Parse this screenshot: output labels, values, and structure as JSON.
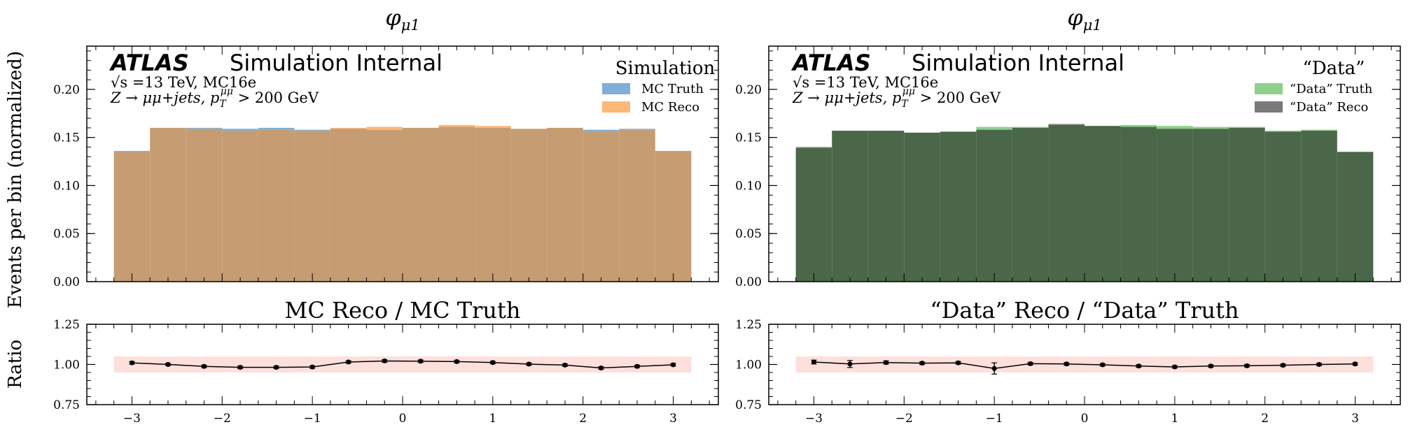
{
  "shared": {
    "ylabel_main": "Events per bin (normalized)",
    "ylabel_ratio": "Ratio",
    "atlas_label": "ATLAS",
    "atlas_suffix": "Simulation Internal",
    "energy_label": "√s =13 TeV, MC16e",
    "selection_label": "Z → μμ+jets, p_T^μμ > 200 GeV",
    "band_color": "#fde0dc"
  },
  "chart_data": [
    {
      "type": "bar",
      "title": "φ_μ1",
      "xlim": [
        -3.5,
        3.5
      ],
      "ylim": [
        0,
        0.245
      ],
      "yticks": [
        "0.00",
        "0.05",
        "0.10",
        "0.15",
        "0.20"
      ],
      "bin_edges": [
        -3.2,
        -2.8,
        -2.4,
        -2.0,
        -1.6,
        -1.2,
        -0.8,
        -0.4,
        0.0,
        0.4,
        0.8,
        1.2,
        1.6,
        2.0,
        2.4,
        2.8,
        3.2
      ],
      "legend_title": "Simulation",
      "legend_position": "top-right",
      "series": [
        {
          "name": "MC Truth",
          "color": "#7faed6",
          "values": [
            0.136,
            0.16,
            0.16,
            0.159,
            0.16,
            0.158,
            0.159,
            0.158,
            0.16,
            0.161,
            0.16,
            0.159,
            0.16,
            0.158,
            0.159,
            0.136
          ]
        },
        {
          "name": "MC Reco",
          "color": "#fdb87a",
          "values": [
            0.135,
            0.16,
            0.159,
            0.157,
            0.158,
            0.157,
            0.16,
            0.161,
            0.16,
            0.163,
            0.162,
            0.159,
            0.16,
            0.156,
            0.158,
            0.136
          ]
        }
      ],
      "overlap_color": "#c69c72",
      "ratio": {
        "title": "MC Reco / MC Truth",
        "ylim": [
          0.75,
          1.25
        ],
        "yticks": [
          "0.75",
          "1.00",
          "1.25"
        ],
        "xticks": [
          "−3",
          "−2",
          "−1",
          "0",
          "1",
          "2",
          "3"
        ],
        "band": [
          0.95,
          1.05
        ],
        "x": [
          -3.0,
          -2.6,
          -2.2,
          -1.8,
          -1.4,
          -1.0,
          -0.6,
          -0.2,
          0.2,
          0.6,
          1.0,
          1.4,
          1.8,
          2.2,
          2.6,
          3.0
        ],
        "y": [
          1.01,
          1.0,
          0.988,
          0.982,
          0.982,
          0.984,
          1.015,
          1.022,
          1.02,
          1.018,
          1.012,
          1.002,
          0.996,
          0.978,
          0.988,
          0.998
        ],
        "err": [
          0.008,
          0.008,
          0.008,
          0.008,
          0.008,
          0.008,
          0.008,
          0.008,
          0.008,
          0.008,
          0.008,
          0.008,
          0.008,
          0.008,
          0.008,
          0.008
        ]
      }
    },
    {
      "type": "bar",
      "title": "φ_μ1",
      "xlim": [
        -3.5,
        3.5
      ],
      "ylim": [
        0,
        0.245
      ],
      "yticks": [
        "0.00",
        "0.05",
        "0.10",
        "0.15",
        "0.20"
      ],
      "bin_edges": [
        -3.2,
        -2.8,
        -2.4,
        -2.0,
        -1.6,
        -1.2,
        -0.8,
        -0.4,
        0.0,
        0.4,
        0.8,
        1.2,
        1.6,
        2.0,
        2.4,
        2.8,
        3.2
      ],
      "legend_title": "“Data”",
      "legend_position": "top-right",
      "series": [
        {
          "name": "“Data” Truth",
          "color": "#8fd08c",
          "values": [
            0.139,
            0.157,
            0.157,
            0.155,
            0.156,
            0.161,
            0.161,
            0.163,
            0.162,
            0.163,
            0.162,
            0.161,
            0.161,
            0.157,
            0.158,
            0.135
          ]
        },
        {
          "name": "“Data” Reco",
          "color": "#7a7a7a",
          "values": [
            0.14,
            0.157,
            0.157,
            0.155,
            0.156,
            0.158,
            0.16,
            0.164,
            0.162,
            0.161,
            0.159,
            0.159,
            0.16,
            0.156,
            0.157,
            0.135
          ]
        }
      ],
      "overlap_color": "#4a6749",
      "ratio": {
        "title": "“Data” Reco / “Data” Truth",
        "ylim": [
          0.75,
          1.25
        ],
        "yticks": [
          "0.75",
          "1.00",
          "1.25"
        ],
        "xticks": [
          "−3",
          "−2",
          "−1",
          "0",
          "1",
          "2",
          "3"
        ],
        "band": [
          0.95,
          1.05
        ],
        "x": [
          -3.0,
          -2.6,
          -2.2,
          -1.8,
          -1.4,
          -1.0,
          -0.6,
          -0.2,
          0.2,
          0.6,
          1.0,
          1.4,
          1.8,
          2.2,
          2.6,
          3.0
        ],
        "y": [
          1.015,
          1.003,
          1.012,
          1.008,
          1.01,
          0.975,
          1.005,
          1.003,
          0.998,
          0.99,
          0.985,
          0.99,
          0.992,
          0.995,
          1.0,
          1.003
        ],
        "err": [
          0.012,
          0.022,
          0.01,
          0.008,
          0.008,
          0.035,
          0.008,
          0.008,
          0.008,
          0.008,
          0.008,
          0.008,
          0.008,
          0.008,
          0.008,
          0.008
        ]
      }
    }
  ]
}
